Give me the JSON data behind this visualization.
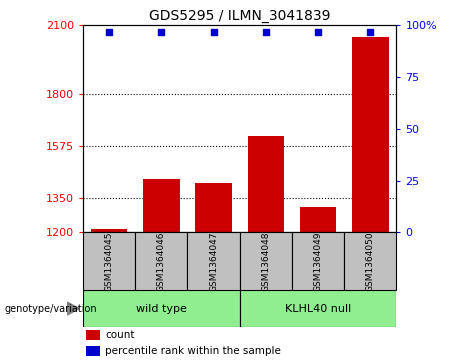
{
  "title": "GDS5295 / ILMN_3041839",
  "samples": [
    "GSM1364045",
    "GSM1364046",
    "GSM1364047",
    "GSM1364048",
    "GSM1364049",
    "GSM1364050"
  ],
  "counts": [
    1215,
    1430,
    1415,
    1620,
    1310,
    2050
  ],
  "percentile_ranks": [
    97,
    97,
    97,
    97,
    97,
    97
  ],
  "groups": [
    {
      "label": "wild type",
      "indices": [
        0,
        1,
        2
      ],
      "color": "#90EE90"
    },
    {
      "label": "KLHL40 null",
      "indices": [
        3,
        4,
        5
      ],
      "color": "#90EE90"
    }
  ],
  "group_label_prefix": "genotype/variation",
  "bar_color": "#CC0000",
  "dot_color": "#0000CC",
  "ylim_left": [
    1200,
    2100
  ],
  "yticks_left": [
    1200,
    1350,
    1575,
    1800,
    2100
  ],
  "ylim_right": [
    0,
    100
  ],
  "yticks_right": [
    0,
    25,
    50,
    75,
    100
  ],
  "hlines": [
    1350,
    1575,
    1800
  ],
  "bar_width": 0.7,
  "sample_box_color": "#C0C0C0",
  "legend_items": [
    {
      "label": "count",
      "color": "#CC0000"
    },
    {
      "label": "percentile rank within the sample",
      "color": "#0000CC"
    }
  ]
}
